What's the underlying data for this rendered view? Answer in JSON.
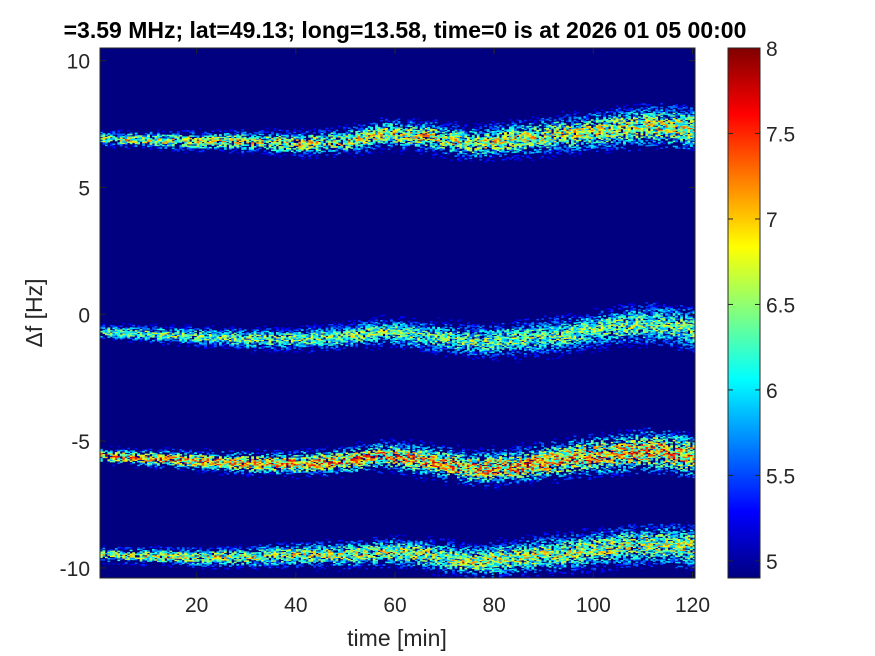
{
  "chart_data": {
    "type": "heatmap",
    "title": "=3.59 MHz;  lat=49.13; long=13.58, time=0 is at 2026 01 05 00:00",
    "xlabel": "time [min]",
    "ylabel": "Δf [Hz]",
    "xlim": [
      0.5,
      120.5
    ],
    "ylim": [
      -10.4,
      10.5
    ],
    "x_ticks": [
      20,
      40,
      60,
      80,
      100,
      120
    ],
    "y_ticks": [
      -10,
      -5,
      0,
      5,
      10
    ],
    "colorbar": {
      "clim": [
        4.9,
        8.0
      ],
      "ticks": [
        5,
        5.5,
        6,
        6.5,
        7,
        7.5,
        8
      ],
      "colormap": "jet"
    },
    "background_value": 4.9,
    "series": [
      {
        "center_trace": {
          "x": [
            0,
            20,
            30,
            40,
            50,
            58,
            66,
            76,
            85,
            95,
            105,
            112,
            120
          ],
          "y": [
            6.9,
            6.8,
            6.8,
            6.7,
            6.8,
            7.1,
            7.0,
            6.7,
            6.9,
            7.1,
            7.3,
            7.4,
            7.3
          ]
        },
        "peak_value": 7.4
      },
      {
        "center_trace": {
          "x": [
            0,
            20,
            30,
            40,
            50,
            58,
            66,
            76,
            85,
            95,
            105,
            112,
            120
          ],
          "y": [
            -0.7,
            -0.9,
            -1.0,
            -1.0,
            -0.9,
            -0.7,
            -0.9,
            -1.1,
            -1.0,
            -0.8,
            -0.5,
            -0.4,
            -0.6
          ]
        },
        "peak_value": 7.0
      },
      {
        "center_trace": {
          "x": [
            0,
            20,
            30,
            40,
            50,
            58,
            66,
            76,
            85,
            95,
            105,
            112,
            120
          ],
          "y": [
            -5.6,
            -5.8,
            -5.9,
            -5.9,
            -5.8,
            -5.6,
            -5.8,
            -6.1,
            -6.0,
            -5.7,
            -5.5,
            -5.4,
            -5.6
          ]
        },
        "peak_value": 7.9
      },
      {
        "center_trace": {
          "x": [
            0,
            20,
            30,
            40,
            50,
            58,
            66,
            76,
            85,
            95,
            105,
            112,
            120
          ],
          "y": [
            -9.5,
            -9.6,
            -9.6,
            -9.5,
            -9.5,
            -9.4,
            -9.5,
            -9.8,
            -9.6,
            -9.4,
            -9.2,
            -9.1,
            -9.2
          ]
        },
        "peak_value": 7.3
      }
    ]
  }
}
